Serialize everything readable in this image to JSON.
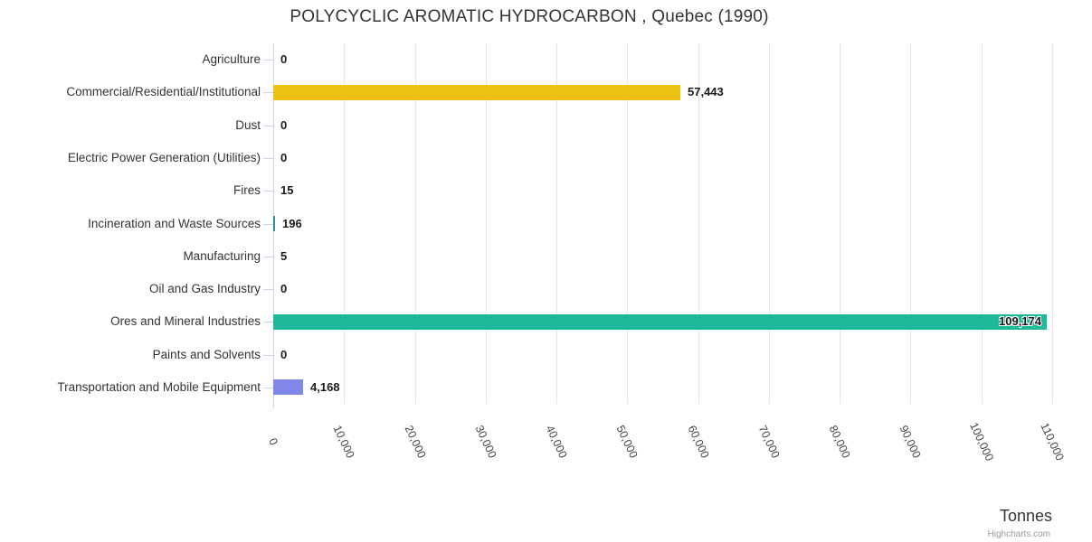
{
  "chart": {
    "title": "POLYCYCLIC AROMATIC HYDROCARBON , Quebec (1990)",
    "x_axis_title": "Tonnes",
    "credit": "Highcharts.com"
  },
  "chart_data": {
    "type": "bar",
    "orientation": "horizontal",
    "title": "POLYCYCLIC AROMATIC HYDROCARBON , Quebec (1990)",
    "xlabel": "Tonnes",
    "ylabel": "",
    "xlim": [
      0,
      110000
    ],
    "tick_interval": 10000,
    "grid": true,
    "legend": false,
    "x_tick_labels": [
      "0",
      "10,000",
      "20,000",
      "30,000",
      "40,000",
      "50,000",
      "60,000",
      "70,000",
      "80,000",
      "90,000",
      "100,000",
      "110,000"
    ],
    "categories": [
      "Agriculture",
      "Commercial/Residential/Institutional",
      "Dust",
      "Electric Power Generation (Utilities)",
      "Fires",
      "Incineration and Waste Sources",
      "Manufacturing",
      "Oil and Gas Industry",
      "Ores and Mineral Industries",
      "Paints and Solvents",
      "Transportation and Mobile Equipment"
    ],
    "values": [
      0,
      57443,
      0,
      0,
      15,
      196,
      5,
      0,
      109174,
      0,
      4168
    ],
    "value_labels": [
      "0",
      "57,443",
      "0",
      "0",
      "15",
      "196",
      "5",
      "0",
      "109,174",
      "0",
      "4,168"
    ],
    "bar_colors": [
      null,
      "#EDC213",
      null,
      null,
      null,
      "#2B908F",
      null,
      null,
      "#1CB998",
      null,
      "#8187E8"
    ]
  },
  "colors": {
    "grid": "#E6E6E6",
    "axis": "#CCD6EB",
    "title_text": "#333333",
    "category_text": "#333333",
    "tick_text": "#444444",
    "data_label_text": "#1A1A1A",
    "credit_text": "#999999"
  }
}
